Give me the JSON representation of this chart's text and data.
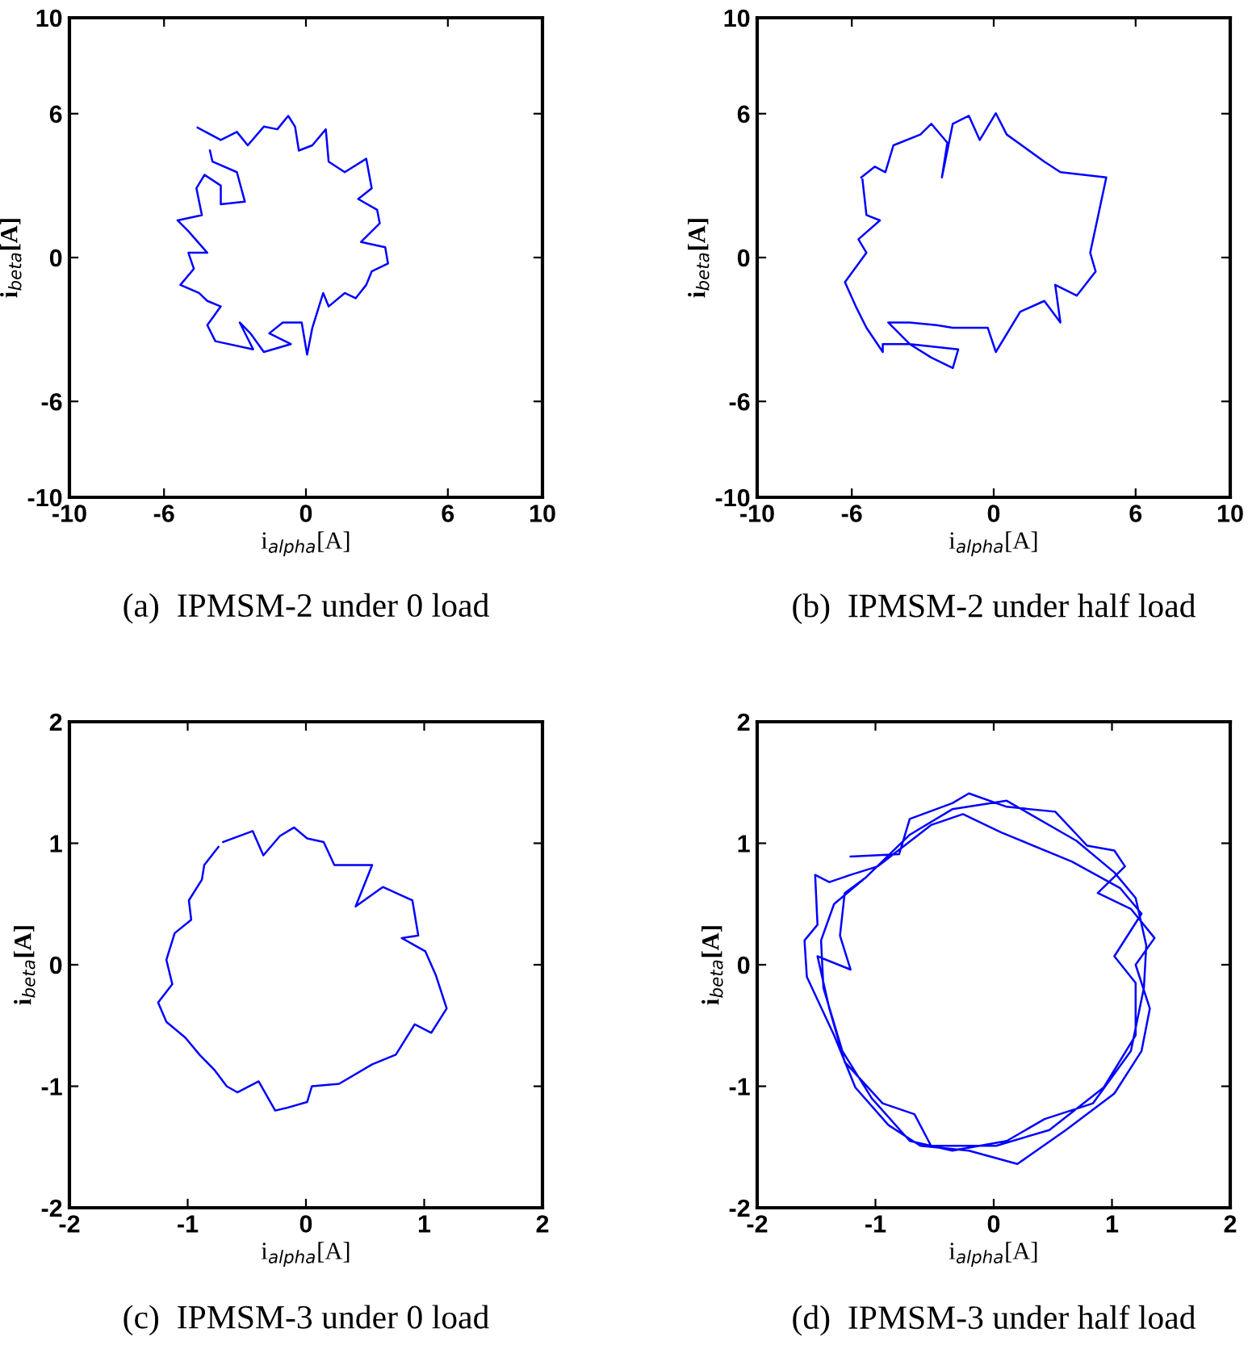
{
  "chart_data": [
    {
      "type": "line",
      "title": "(a)  IPMSM-2 under 0 load",
      "xlabel": "i$_{alpha}$[A]",
      "ylabel": "i$_{beta}$[A]",
      "xlim": [
        -10,
        10
      ],
      "ylim": [
        -10,
        10
      ],
      "xticks": [
        -10,
        -6,
        0,
        6,
        10
      ],
      "yticks": [
        -10,
        -6,
        0,
        6,
        10
      ],
      "grid": false,
      "legend": false,
      "marker": "none",
      "line_style": "solid",
      "series": [
        {
          "color": "#0000ff",
          "x": [
            -4.58,
            -3.6,
            -2.92,
            -2.46,
            -1.78,
            -1.21,
            -0.75,
            -0.46,
            -0.3,
            0.27,
            0.84,
            0.96,
            1.64,
            2.55,
            2.78,
            2.21,
            3.01,
            3.12,
            2.33,
            3.35,
            3.47,
            2.78,
            2.55,
            2.1,
            1.64,
            0.96,
            0.73,
            0.27,
            0.05,
            -0.18,
            -0.98,
            -1.55,
            -0.64,
            -1.78,
            -2.35,
            -2.8,
            -2.23,
            -3.83,
            -4.17,
            -3.6,
            -4.17,
            -4.52,
            -5.31,
            -4.74,
            -4.97,
            -4.17,
            -4.97,
            -5.43,
            -4.4,
            -4.63,
            -4.29,
            -3.6,
            -3.6,
            -2.58,
            -2.92,
            -3.95,
            -4.06
          ],
          "values": [
            5.42,
            4.9,
            5.24,
            4.68,
            5.46,
            5.35,
            5.91,
            5.46,
            4.46,
            4.68,
            5.35,
            4.0,
            3.56,
            4.12,
            2.89,
            2.44,
            1.99,
            1.43,
            0.65,
            0.43,
            -0.25,
            -0.58,
            -1.14,
            -1.7,
            -1.48,
            -2.04,
            -1.48,
            -2.93,
            -4.05,
            -2.71,
            -2.71,
            -3.16,
            -3.61,
            -3.94,
            -3.16,
            -2.71,
            -3.83,
            -3.49,
            -2.82,
            -2.04,
            -1.81,
            -1.48,
            -1.14,
            -0.47,
            0.2,
            0.2,
            1.1,
            1.55,
            1.77,
            2.89,
            3.45,
            3.0,
            2.22,
            2.33,
            3.56,
            4.0,
            4.46
          ]
        }
      ]
    },
    {
      "type": "line",
      "title": "(b)  IPMSM-2 under half load",
      "xlabel": "i$_{alpha}$[A]",
      "ylabel": "i$_{beta}$[A]",
      "xlim": [
        -10,
        10
      ],
      "ylim": [
        -10,
        10
      ],
      "xticks": [
        -10,
        -6,
        0,
        6,
        10
      ],
      "yticks": [
        -10,
        -6,
        0,
        6,
        10
      ],
      "grid": false,
      "legend": false,
      "marker": "none",
      "line_style": "solid",
      "series": [
        {
          "color": "#0000ff",
          "x": [
            -5.6,
            -5.03,
            -4.58,
            -4.24,
            -3.1,
            -2.64,
            -1.96,
            -2.19,
            -1.73,
            -1.05,
            -0.59,
            0.09,
            0.55,
            2.14,
            2.82,
            4.76,
            4.42,
            4.08,
            4.31,
            3.51,
            2.6,
            2.82,
            2.14,
            1.12,
            0.09,
            -0.25,
            -1.73,
            -2.41,
            -3.55,
            -4.46,
            -3.55,
            -2.64,
            -1.73,
            -1.5,
            -3.55,
            -4.69,
            -4.69,
            -5.38,
            -5.83,
            -6.29,
            -5.38,
            -5.72,
            -4.81,
            -5.38,
            -5.55
          ],
          "values": [
            3.34,
            3.79,
            3.56,
            4.68,
            5.13,
            5.58,
            4.79,
            3.34,
            5.58,
            5.91,
            4.9,
            6.02,
            5.13,
            4.0,
            3.56,
            3.34,
            1.77,
            0.2,
            -0.58,
            -1.59,
            -1.14,
            -2.71,
            -1.81,
            -2.26,
            -3.94,
            -2.93,
            -2.93,
            -2.82,
            -2.71,
            -2.71,
            -3.61,
            -4.17,
            -4.61,
            -3.83,
            -3.61,
            -3.61,
            -3.94,
            -2.93,
            -2.04,
            -1.03,
            0.2,
            0.76,
            1.55,
            1.77,
            3.25
          ]
        }
      ]
    },
    {
      "type": "line",
      "title": "(c)  IPMSM-3 under 0 load",
      "xlabel": "i$_{alpha}$[A]",
      "ylabel": "i$_{beta}$[A]",
      "xlim": [
        -2,
        2
      ],
      "ylim": [
        -2,
        2
      ],
      "xticks": [
        -2,
        -1,
        0,
        1,
        2
      ],
      "yticks": [
        -2,
        -1,
        0,
        1,
        2
      ],
      "grid": false,
      "legend": false,
      "marker": "none",
      "line_style": "solid",
      "series": [
        {
          "color": "#0000ff",
          "x": [
            -0.7,
            -0.45,
            -0.36,
            -0.22,
            -0.1,
            0.01,
            0.15,
            0.24,
            0.56,
            0.42,
            0.65,
            0.9,
            0.95,
            0.81,
            1.01,
            1.1,
            1.19,
            1.06,
            0.92,
            0.76,
            0.56,
            0.28,
            0.05,
            0.01,
            -0.17,
            -0.26,
            -0.4,
            -0.58,
            -0.67,
            -0.77,
            -0.9,
            -1.02,
            -1.18,
            -1.25,
            -1.13,
            -1.18,
            -1.11,
            -0.97,
            -0.99,
            -0.88,
            -0.86,
            -0.74
          ],
          "values": [
            1.01,
            1.1,
            0.9,
            1.06,
            1.13,
            1.04,
            1.01,
            0.82,
            0.82,
            0.48,
            0.64,
            0.53,
            0.24,
            0.22,
            0.11,
            -0.09,
            -0.36,
            -0.56,
            -0.49,
            -0.74,
            -0.82,
            -0.98,
            -1.0,
            -1.13,
            -1.18,
            -1.2,
            -0.96,
            -1.05,
            -1.0,
            -0.87,
            -0.74,
            -0.6,
            -0.47,
            -0.31,
            -0.16,
            0.04,
            0.26,
            0.37,
            0.53,
            0.7,
            0.82,
            0.97
          ]
        }
      ]
    },
    {
      "type": "line",
      "title": "(d)  IPMSM-3 under half load",
      "xlabel": "i$_{alpha}$[A]",
      "ylabel": "i$_{beta}$[A]",
      "xlim": [
        -2,
        2
      ],
      "ylim": [
        -2,
        2
      ],
      "xticks": [
        -2,
        -1,
        0,
        1,
        2
      ],
      "yticks": [
        -2,
        -1,
        0,
        1,
        2
      ],
      "grid": false,
      "legend": false,
      "marker": "none",
      "line_style": "solid",
      "series": [
        {
          "color": "#0000ff",
          "x": [
            -1.21,
            -0.8,
            -0.71,
            -0.35,
            -0.21,
            0.11,
            0.52,
            0.79,
            1.02,
            1.11,
            0.88,
            1.16,
            1.36,
            1.2,
            1.32,
            1.25,
            1.02,
            0.61,
            0.2,
            -0.21,
            -0.62,
            -0.89,
            -1.17,
            -1.35,
            -1.58,
            -1.6,
            -1.49,
            -1.51,
            -1.39,
            -1.21,
            -0.98,
            -0.53,
            -0.26,
            0.06,
            0.66,
            1.07,
            1.25,
            1.02,
            1.2,
            1.2,
            0.93,
            0.47,
            0.02,
            -0.53,
            -0.67,
            -0.94,
            -1.26,
            -1.39,
            -1.49,
            -1.21,
            -1.3,
            -1.26,
            -1.08,
            -0.71,
            -0.35,
            0.11,
            0.7,
            1.02,
            1.2,
            1.29,
            1.27,
            1.16,
            0.84,
            0.43,
            0.11,
            -0.35,
            -0.71,
            -1.03,
            -1.28,
            -1.44,
            -1.46,
            -1.35,
            -1.08
          ],
          "values": [
            0.89,
            0.91,
            1.2,
            1.33,
            1.41,
            1.3,
            1.26,
            0.98,
            0.94,
            0.81,
            0.59,
            0.46,
            0.22,
            0.0,
            -0.36,
            -0.71,
            -1.06,
            -1.36,
            -1.64,
            -1.53,
            -1.49,
            -1.32,
            -1.01,
            -0.58,
            -0.1,
            0.2,
            0.33,
            0.74,
            0.68,
            0.74,
            0.81,
            1.15,
            1.24,
            1.09,
            0.85,
            0.63,
            0.42,
            0.07,
            -0.15,
            -0.58,
            -1.01,
            -1.36,
            -1.49,
            -1.49,
            -1.23,
            -1.14,
            -0.8,
            -0.36,
            0.07,
            -0.04,
            0.24,
            0.59,
            0.72,
            1.07,
            1.28,
            1.35,
            1.02,
            0.76,
            0.55,
            0.16,
            -0.19,
            -0.71,
            -1.14,
            -1.27,
            -1.45,
            -1.53,
            -1.45,
            -1.1,
            -0.71,
            -0.19,
            0.2,
            0.5,
            0.72
          ]
        }
      ]
    }
  ]
}
